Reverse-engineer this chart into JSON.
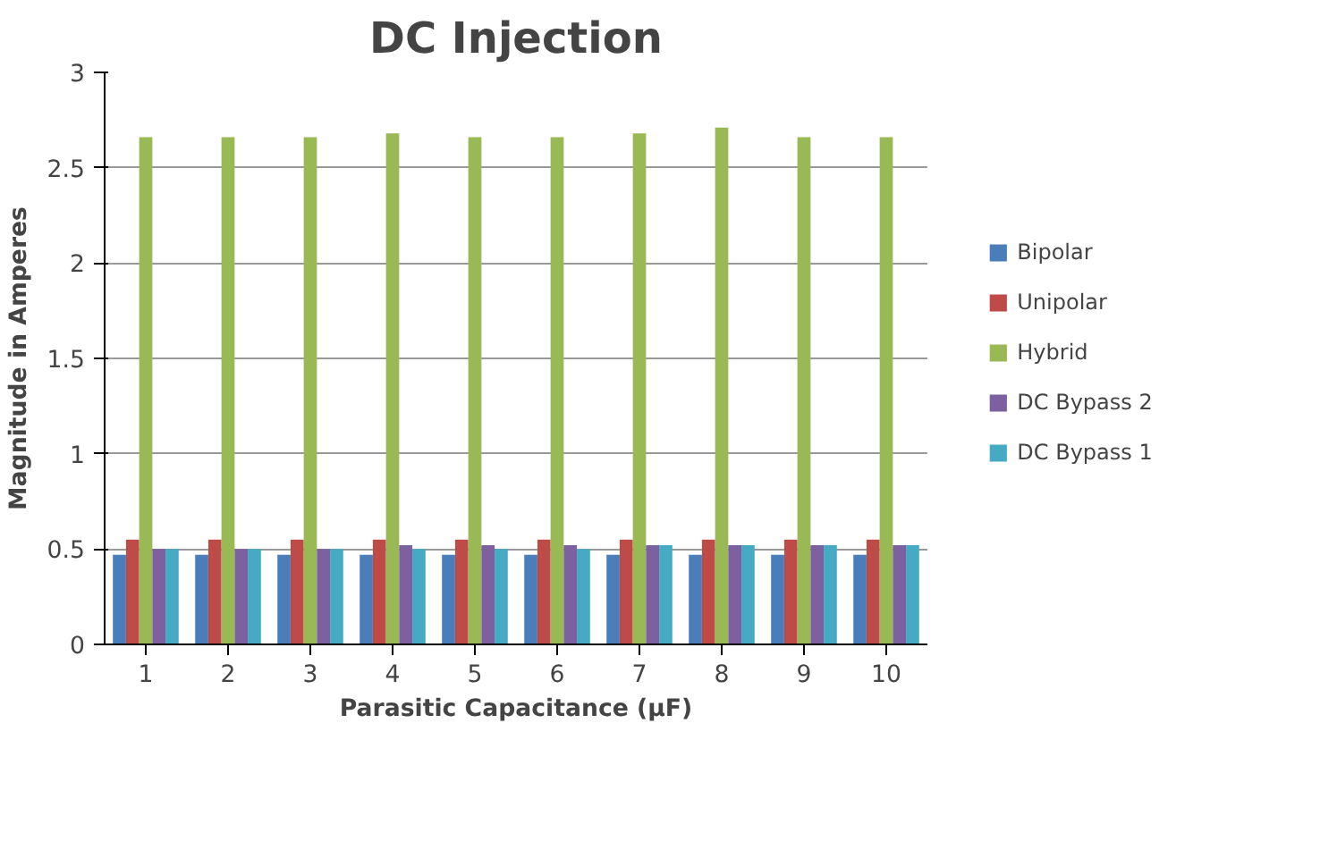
{
  "chart_data": {
    "type": "bar",
    "title": "DC Injection",
    "xlabel": "Parasitic Capacitance (μF)",
    "ylabel": "Magnitude in Amperes",
    "categories": [
      "1",
      "2",
      "3",
      "4",
      "5",
      "6",
      "7",
      "8",
      "9",
      "10"
    ],
    "series": [
      {
        "name": "Bipolar",
        "color": "#4a7ebb",
        "values": [
          0.47,
          0.47,
          0.47,
          0.47,
          0.47,
          0.47,
          0.47,
          0.47,
          0.47,
          0.47
        ]
      },
      {
        "name": "Unipolar",
        "color": "#be4b48",
        "values": [
          0.55,
          0.55,
          0.55,
          0.55,
          0.55,
          0.55,
          0.55,
          0.55,
          0.55,
          0.55
        ]
      },
      {
        "name": "Hybrid",
        "color": "#98b954",
        "values": [
          2.66,
          2.66,
          2.66,
          2.68,
          2.66,
          2.66,
          2.68,
          2.71,
          2.66,
          2.66
        ]
      },
      {
        "name": "DC Bypass 2",
        "color": "#7d60a0",
        "values": [
          0.5,
          0.5,
          0.5,
          0.52,
          0.52,
          0.52,
          0.52,
          0.52,
          0.52,
          0.52
        ]
      },
      {
        "name": "DC Bypass 1",
        "color": "#46aac5",
        "values": [
          0.5,
          0.5,
          0.5,
          0.5,
          0.5,
          0.5,
          0.52,
          0.52,
          0.52,
          0.52
        ]
      }
    ],
    "ylim": [
      0,
      3
    ],
    "yticks": [
      0,
      {
        "value": 0.5,
        "label": "0.5"
      },
      1,
      {
        "value": 1.5,
        "label": "1.5"
      },
      2,
      {
        "value": 2.5,
        "label": "2.5"
      },
      3
    ],
    "grid": "y",
    "legend": "right"
  }
}
